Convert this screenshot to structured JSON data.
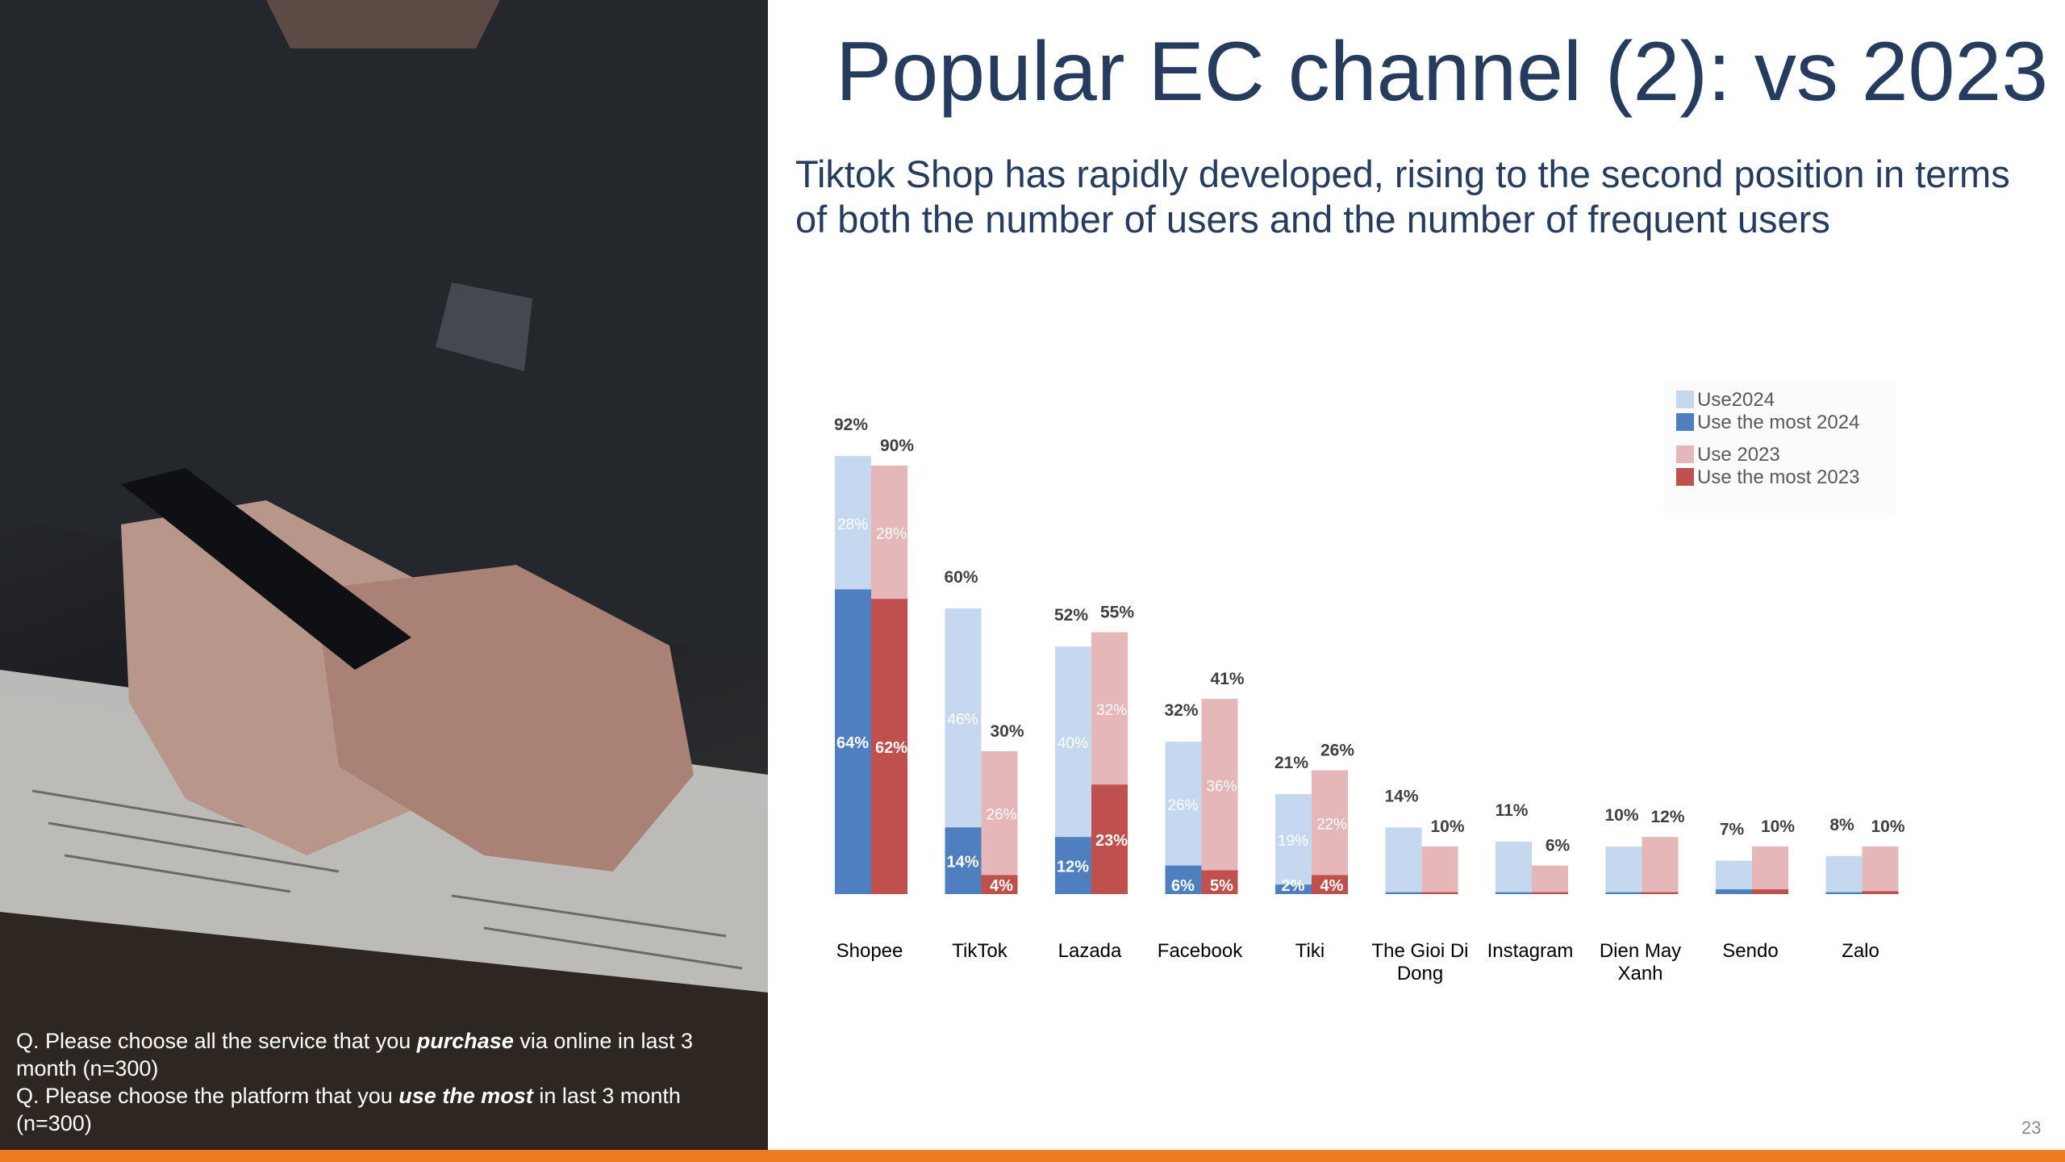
{
  "slide": {
    "title": "Popular EC channel (2): vs 2023",
    "subtitle": "Tiktok Shop has rapidly developed, rising to the second position in terms of both the number of users and the number of frequent users",
    "page_number": "23"
  },
  "questions": {
    "q1_prefix": "Q. Please choose all the service that you ",
    "q1_emphasis": "purchase",
    "q1_suffix": " via online in last 3 month (n=300)",
    "q2_prefix": "Q. Please choose the platform that you ",
    "q2_emphasis": "use the most",
    "q2_suffix": " in last 3 month (n=300)"
  },
  "colors": {
    "use2024": "#c6d8f0",
    "most2024": "#4f7fbe",
    "use2023": "#e6b7b8",
    "most2023": "#c0504d",
    "accent_bar": "#f07c22",
    "title": "#253c5e"
  },
  "chart_data": {
    "type": "bar",
    "categories": [
      "Shopee",
      "TikTok",
      "Lazada",
      "Facebook",
      "Tiki",
      "The Gioi Di Dong",
      "Instagram",
      "Dien May Xanh",
      "Sendo",
      "Zalo"
    ],
    "series": [
      {
        "name": "Use2024",
        "values": [
          92,
          60,
          52,
          32,
          21,
          14,
          11,
          10,
          7,
          8
        ],
        "labels": [
          "92%",
          "60%",
          "52%",
          "32%",
          "21%",
          "14%",
          "11%",
          "10%",
          "7%",
          "8%"
        ],
        "inner_values": [
          28,
          46,
          40,
          26,
          19,
          null,
          null,
          null,
          null,
          null
        ],
        "inner_labels": [
          "28%",
          "46%",
          "40%",
          "26%",
          "19%",
          "",
          "",
          "",
          "",
          ""
        ]
      },
      {
        "name": "Use the most 2024",
        "values": [
          64,
          14,
          12,
          6,
          2,
          0.4,
          0.4,
          0.4,
          1,
          0.4
        ],
        "labels": [
          "64%",
          "14%",
          "12%",
          "6%",
          "2%",
          "",
          "",
          "",
          "",
          ""
        ]
      },
      {
        "name": "Use 2023",
        "values": [
          90,
          30,
          55,
          41,
          26,
          10,
          6,
          12,
          10,
          10
        ],
        "labels": [
          "90%",
          "30%",
          "55%",
          "41%",
          "26%",
          "10%",
          "6%",
          "12%",
          "10%",
          "10%"
        ],
        "inner_values": [
          28,
          26,
          32,
          36,
          22,
          null,
          null,
          null,
          null,
          null
        ],
        "inner_labels": [
          "28%",
          "26%",
          "32%",
          "36%",
          "22%",
          "",
          "",
          "",
          "",
          ""
        ]
      },
      {
        "name": "Use the most 2023",
        "values": [
          62,
          4,
          23,
          5,
          4,
          0.4,
          0.4,
          0.4,
          1,
          0.6
        ],
        "labels": [
          "62%",
          "4%",
          "23%",
          "5%",
          "4%",
          "",
          "",
          "",
          "",
          ""
        ]
      }
    ],
    "ylim": [
      0,
      100
    ],
    "legend": [
      "Use2024",
      "Use the most 2024",
      "Use 2023",
      "Use the most 2023"
    ],
    "legend_position": "top-right",
    "grid": false
  }
}
